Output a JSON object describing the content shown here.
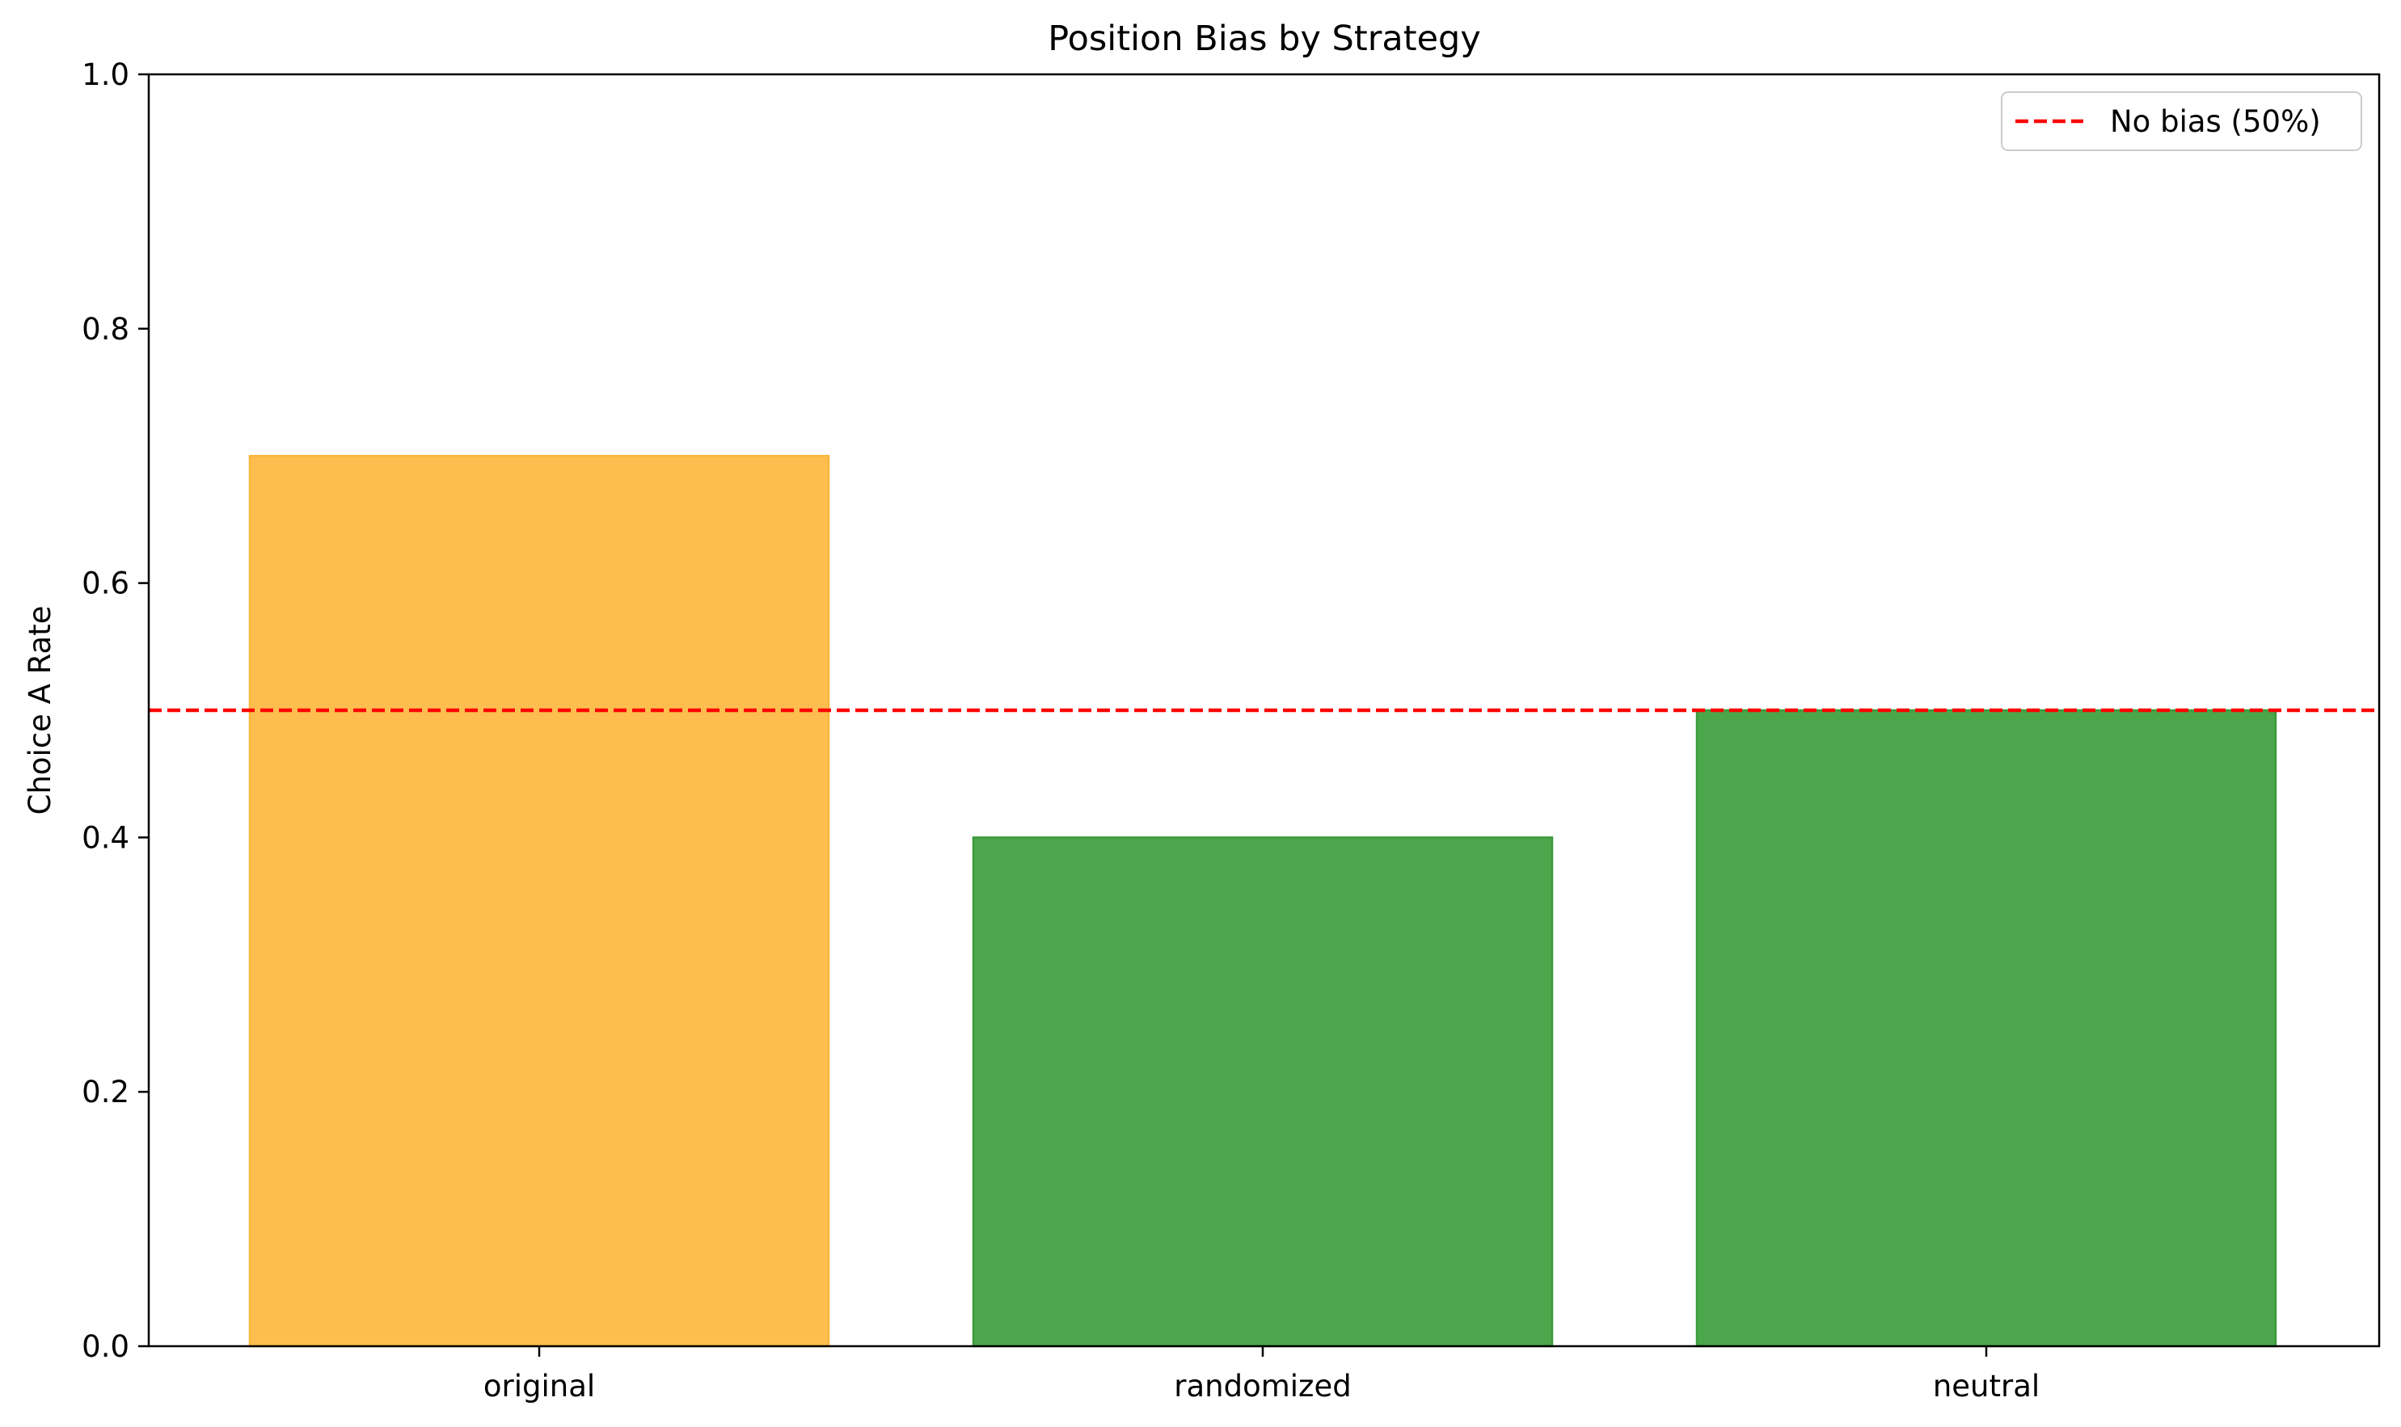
{
  "chart_data": {
    "type": "bar",
    "title": "Position Bias by Strategy",
    "xlabel": "",
    "ylabel": "Choice A Rate",
    "categories": [
      "original",
      "randomized",
      "neutral"
    ],
    "values": [
      0.7,
      0.4,
      0.5
    ],
    "bar_colors": [
      "#fdbe4f",
      "#4ca64c",
      "#4ca64c"
    ],
    "bar_edge_colors": [
      "#fbb53a",
      "#3a9a3a",
      "#3a9a3a"
    ],
    "ylim": [
      0,
      1.0
    ],
    "yticks": [
      0.0,
      0.2,
      0.4,
      0.6,
      0.8,
      1.0
    ],
    "ytick_labels": [
      "0.0",
      "0.2",
      "0.4",
      "0.6",
      "0.8",
      "1.0"
    ],
    "grid": false,
    "reference_line": {
      "y": 0.5,
      "label": "No bias (50%)",
      "color": "#ff0000",
      "style": "dashed"
    },
    "legend": {
      "position": "top-right",
      "entries": [
        "No bias (50%)"
      ]
    }
  }
}
